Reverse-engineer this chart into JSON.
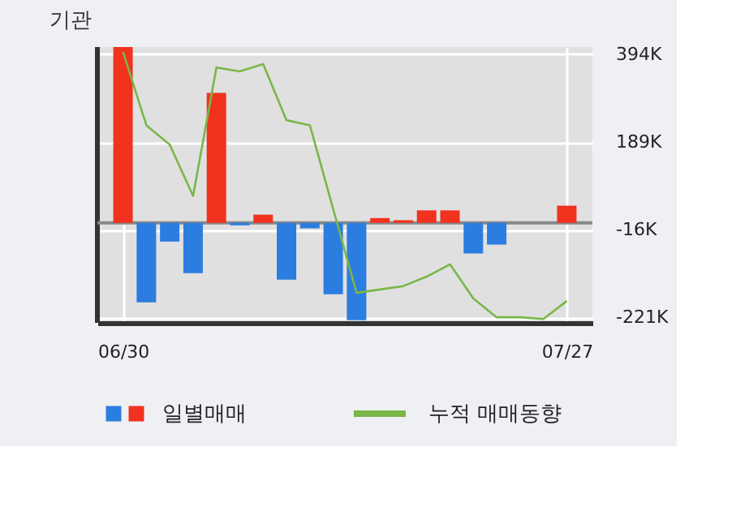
{
  "chart_data": {
    "type": "bar",
    "title": "기관",
    "categories": [
      "06/30",
      null,
      null,
      null,
      null,
      null,
      null,
      null,
      null,
      null,
      null,
      null,
      null,
      null,
      null,
      null,
      null,
      null,
      null,
      "07/27"
    ],
    "series": [
      {
        "name": "일별매매",
        "values": [
          411000,
          -186000,
          -44000,
          -118000,
          304000,
          -6000,
          19000,
          -133000,
          -13000,
          -167000,
          -228000,
          11000,
          6000,
          29000,
          29000,
          -72000,
          -51000,
          0,
          0,
          40000
        ],
        "colors": [
          "#f0321e",
          "#2b7de0",
          "#2b7de0",
          "#2b7de0",
          "#f0321e",
          "#2b7de0",
          "#f0321e",
          "#2b7de0",
          "#2b7de0",
          "#2b7de0",
          "#2b7de0",
          "#f0321e",
          "#f0321e",
          "#f0321e",
          "#f0321e",
          "#2b7de0",
          "#2b7de0",
          "#f0321e",
          "#f0321e",
          "#f0321e"
        ]
      },
      {
        "name": "누적 매매동향",
        "type": "line",
        "color": "#7ab648",
        "values": [
          400000,
          228000,
          183000,
          63000,
          363000,
          354000,
          371000,
          240000,
          228000,
          32000,
          -164000,
          -156000,
          -148000,
          -126000,
          -97000,
          -177000,
          -221000,
          -221000,
          -225000,
          -183000
        ]
      }
    ],
    "ylim": [
      -234000,
      411000
    ],
    "yticks": [
      {
        "value": 394000,
        "label": "394K"
      },
      {
        "value": 189000,
        "label": "189K"
      },
      {
        "value": -16000,
        "label": "-16K"
      },
      {
        "value": -221000,
        "label": "-221K"
      }
    ],
    "grid": true,
    "legend": "bottom"
  }
}
